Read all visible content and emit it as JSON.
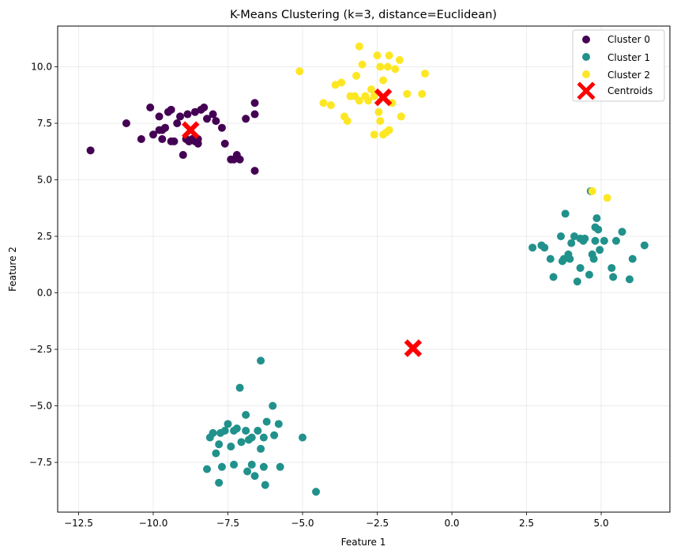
{
  "chart_data": {
    "type": "scatter",
    "title": "K-Means Clustering (k=3, distance=Euclidean)",
    "xlabel": "Feature 1",
    "ylabel": "Feature 2",
    "xlim": [
      -13.2,
      7.3
    ],
    "ylim": [
      -9.7,
      11.8
    ],
    "xticks": [
      -12.5,
      -10.0,
      -7.5,
      -5.0,
      -2.5,
      0.0,
      2.5,
      5.0
    ],
    "xtick_labels": [
      "−12.5",
      "−10.0",
      "−7.5",
      "−5.0",
      "−2.5",
      "0.0",
      "2.5",
      "5.0"
    ],
    "yticks": [
      -7.5,
      -5.0,
      -2.5,
      0.0,
      2.5,
      5.0,
      7.5,
      10.0
    ],
    "ytick_labels": [
      "−7.5",
      "−5.0",
      "−2.5",
      "0.0",
      "2.5",
      "5.0",
      "7.5",
      "10.0"
    ],
    "grid": true,
    "legend_position": "top-right",
    "series": [
      {
        "name": "Cluster 0",
        "color": "#440154",
        "x": [
          -12.1,
          -10.9,
          -10.1,
          -10.4,
          -9.8,
          -9.7,
          -9.6,
          -9.5,
          -9.4,
          -9.3,
          -9.2,
          -9.0,
          -8.9,
          -8.8,
          -8.7,
          -8.6,
          -8.5,
          -8.4,
          -8.3,
          -8.2,
          -8.0,
          -7.9,
          -7.7,
          -7.6,
          -7.4,
          -7.2,
          -7.1,
          -6.9,
          -6.6,
          -6.6,
          -9.8,
          -9.7,
          -9.1,
          -8.85,
          -8.6,
          -8.5,
          -8.8,
          -7.3,
          -6.6,
          -10.0,
          -9.4
        ],
        "y": [
          6.3,
          7.5,
          8.2,
          6.8,
          7.8,
          6.8,
          7.3,
          8.0,
          8.1,
          6.7,
          7.5,
          6.1,
          6.8,
          6.7,
          6.8,
          6.7,
          6.6,
          8.1,
          8.2,
          7.7,
          7.9,
          7.6,
          7.3,
          6.6,
          5.9,
          6.1,
          5.9,
          7.7,
          8.4,
          7.9,
          7.2,
          7.2,
          7.8,
          7.9,
          8.0,
          6.8,
          6.7,
          5.9,
          5.4,
          7.0,
          6.7
        ]
      },
      {
        "name": "Cluster 1",
        "color": "#21918c",
        "x": [
          2.7,
          3.0,
          3.1,
          3.3,
          3.4,
          3.65,
          3.7,
          3.8,
          3.9,
          3.95,
          4.0,
          4.1,
          4.2,
          4.3,
          4.4,
          4.45,
          4.6,
          4.7,
          4.75,
          4.8,
          4.85,
          4.9,
          4.95,
          5.1,
          5.35,
          5.4,
          5.5,
          5.7,
          5.95,
          6.05,
          6.45,
          4.3,
          4.65,
          4.8,
          3.75,
          -7.1,
          -7.2,
          -7.4,
          -7.5,
          -7.6,
          -7.7,
          -7.8,
          -7.9,
          -8.0,
          -8.1,
          -8.2,
          -6.9,
          -6.8,
          -6.7,
          -6.6,
          -6.5,
          -6.4,
          -6.3,
          -6.2,
          -6.0,
          -5.95,
          -5.8,
          -5.0,
          -4.55,
          -6.4,
          -7.8,
          -6.7,
          -6.9,
          -7.3,
          -6.85,
          -6.25,
          -5.75,
          -7.05,
          -7.75,
          -7.3,
          -6.3
        ],
        "y": [
          2.0,
          2.1,
          2.0,
          1.5,
          0.7,
          2.5,
          1.4,
          3.5,
          1.7,
          1.5,
          2.2,
          2.5,
          0.5,
          1.1,
          2.3,
          2.4,
          0.8,
          1.7,
          1.5,
          2.9,
          3.3,
          2.8,
          1.9,
          2.3,
          1.1,
          0.7,
          2.3,
          2.7,
          0.6,
          1.5,
          2.1,
          2.4,
          4.5,
          2.3,
          1.5,
          -4.2,
          -6.0,
          -6.8,
          -5.8,
          -6.1,
          -7.7,
          -6.7,
          -7.1,
          -6.2,
          -6.4,
          -7.8,
          -6.1,
          -6.5,
          -6.4,
          -8.1,
          -6.1,
          -6.9,
          -7.7,
          -5.7,
          -5.0,
          -6.3,
          -5.8,
          -6.4,
          -8.8,
          -3.0,
          -8.4,
          -7.6,
          -5.4,
          -7.6,
          -7.9,
          -8.5,
          -7.7,
          -6.6,
          -6.2,
          -6.1,
          -6.4
        ]
      },
      {
        "name": "Cluster 2",
        "color": "#fde725",
        "x": [
          -5.1,
          -4.3,
          -4.05,
          -3.9,
          -3.7,
          -3.5,
          -3.4,
          -3.2,
          -3.1,
          -3.0,
          -2.9,
          -2.8,
          -2.7,
          -2.6,
          -2.5,
          -2.45,
          -2.4,
          -2.3,
          -2.2,
          -2.15,
          -2.1,
          -2.0,
          -1.9,
          -1.75,
          -1.7,
          -1.5,
          -1.0,
          -0.9,
          -3.1,
          -2.6,
          -2.3,
          -3.6,
          -2.4,
          -3.25,
          -2.1,
          4.7,
          5.2
        ],
        "y": [
          9.8,
          8.4,
          8.3,
          9.2,
          9.3,
          7.6,
          8.7,
          9.6,
          8.5,
          10.1,
          8.7,
          8.5,
          9.0,
          8.7,
          10.5,
          8.0,
          7.6,
          7.0,
          7.1,
          10.0,
          7.2,
          8.4,
          9.9,
          10.3,
          7.8,
          8.8,
          8.8,
          9.7,
          10.9,
          7.0,
          9.4,
          7.8,
          10.0,
          8.7,
          10.5,
          4.5,
          4.2
        ]
      }
    ],
    "centroids": {
      "name": "Centroids",
      "color": "#ff0000",
      "x": [
        -8.75,
        -2.3,
        -1.3
      ],
      "y": [
        7.2,
        8.65,
        -2.45
      ]
    }
  }
}
